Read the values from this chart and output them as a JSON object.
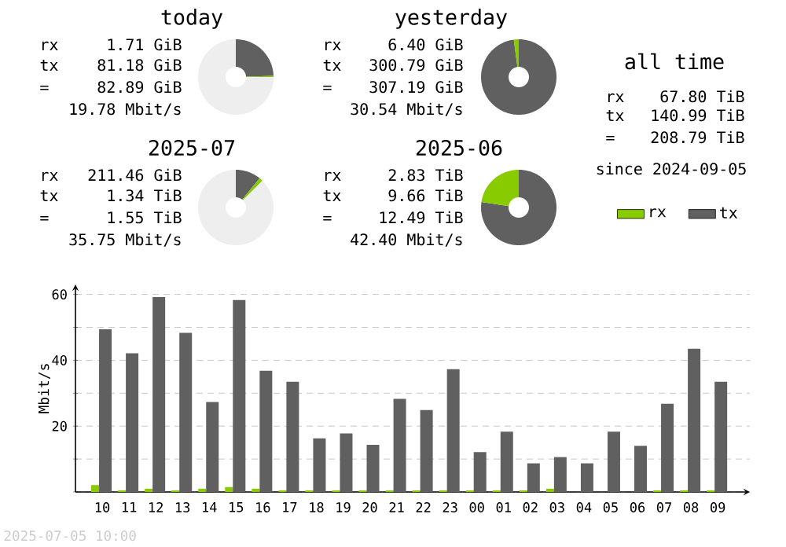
{
  "chart_data": [
    {
      "type": "donut",
      "title": "today",
      "categories": [
        null,
        null,
        null
      ],
      "values": [
        24.5,
        0.5,
        75
      ],
      "colors": [
        "#606060",
        "#88cc00",
        "#eeeeee"
      ],
      "annotations": [
        "rx",
        "1.71 GiB",
        "tx",
        "81.18 GiB",
        "=",
        "82.89 GiB",
        "19.78 Mbit/s"
      ]
    },
    {
      "type": "donut",
      "title": "yesterday",
      "categories": [
        null,
        null
      ],
      "values": [
        97.9,
        2.1
      ],
      "colors": [
        "#606060",
        "#88cc00"
      ],
      "annotations": [
        "rx",
        "6.40 GiB",
        "tx",
        "300.79 GiB",
        "=",
        "307.19 GiB",
        "30.54 Mbit/s"
      ]
    },
    {
      "type": "donut",
      "title": "2025-07",
      "categories": [
        null,
        null,
        null
      ],
      "values": [
        10.9,
        1.6,
        87.5
      ],
      "colors": [
        "#606060",
        "#88cc00",
        "#eeeeee"
      ],
      "annotations": [
        "rx",
        "211.46 GiB",
        "tx",
        "1.34 TiB",
        "=",
        "1.55 TiB",
        "35.75 Mbit/s"
      ]
    },
    {
      "type": "donut",
      "title": "2025-06",
      "categories": [
        null,
        null
      ],
      "values": [
        77.3,
        22.7
      ],
      "colors": [
        "#606060",
        "#88cc00"
      ],
      "annotations": [
        "rx",
        "2.83 TiB",
        "tx",
        "9.66 TiB",
        "=",
        "12.49 TiB",
        "42.40 Mbit/s"
      ]
    },
    {
      "type": "other",
      "title": "all time",
      "annotations": [
        "rx",
        "67.80 TiB",
        "tx",
        "140.99 TiB",
        "=",
        "208.79 TiB",
        "since 2024-09-05"
      ]
    },
    {
      "type": "bar",
      "categories": [
        "10",
        "11",
        "12",
        "13",
        "14",
        "15",
        "16",
        "17",
        "18",
        "19",
        "20",
        "21",
        "22",
        "23",
        "00",
        "01",
        "02",
        "03",
        "04",
        "05",
        "06",
        "07",
        "08",
        "09"
      ],
      "series": [
        {
          "name": "rx",
          "color": "#88cc00",
          "values": [
            2.1,
            0.5,
            1.0,
            0.5,
            1.0,
            1.5,
            1.0,
            0.5,
            0.5,
            0.5,
            0.5,
            0.5,
            0.5,
            0.5,
            0.5,
            0.5,
            0.5,
            1.0,
            0,
            0,
            0,
            0.5,
            0.5,
            0.5
          ]
        },
        {
          "name": "tx",
          "color": "#606060",
          "values": [
            49.4,
            42.1,
            59.2,
            48.3,
            27.3,
            58.3,
            36.8,
            33.5,
            16.3,
            17.8,
            14.3,
            28.3,
            24.9,
            37.3,
            12.1,
            18.3,
            8.7,
            10.6,
            8.7,
            18.3,
            14.0,
            26.8,
            43.5,
            33.5
          ]
        }
      ],
      "ylabel": "Mbit/s",
      "ylim": [
        0,
        63
      ],
      "yticks": [
        {
          "value": 0,
          "label": null
        },
        {
          "value": 10,
          "label": null
        },
        20,
        {
          "value": 30,
          "label": null
        },
        40,
        {
          "value": 50,
          "label": null
        },
        60
      ],
      "grid": "y",
      "legend": "top right",
      "annotations": [
        "2025-07-05 10:00"
      ]
    }
  ]
}
